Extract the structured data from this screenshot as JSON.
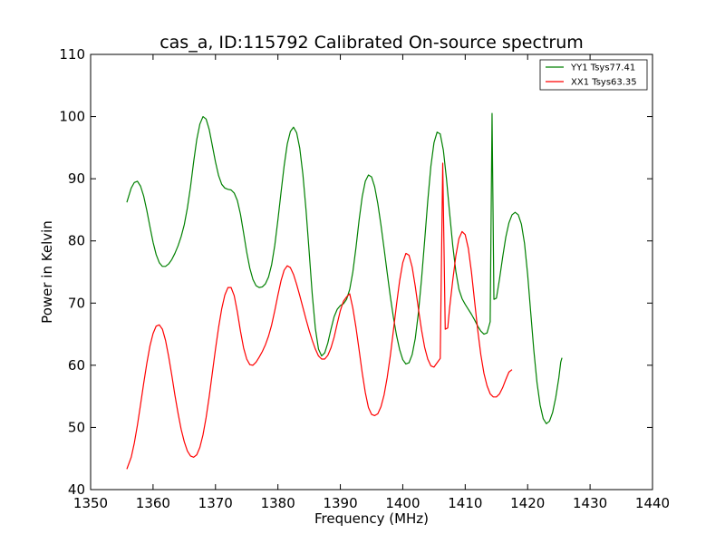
{
  "chart_data": {
    "type": "line",
    "title": "cas_a, ID:115792 Calibrated On-source spectrum",
    "xlabel": "Frequency (MHz)",
    "ylabel": "Power in Kelvin",
    "xlim": [
      1350,
      1440
    ],
    "ylim": [
      40,
      110
    ],
    "x_ticks": [
      1350,
      1360,
      1370,
      1380,
      1390,
      1400,
      1410,
      1420,
      1430,
      1440
    ],
    "y_ticks": [
      40,
      50,
      60,
      70,
      80,
      90,
      100,
      110
    ],
    "grid": false,
    "legend_position": "upper right",
    "series": [
      {
        "name": "YY1 Tsys77.41",
        "color": "#008000",
        "points": [
          [
            1355.8,
            86.2
          ],
          [
            1356.5,
            88.5
          ],
          [
            1357.0,
            89.4
          ],
          [
            1357.5,
            89.6
          ],
          [
            1358.0,
            88.8
          ],
          [
            1358.5,
            87.2
          ],
          [
            1359.0,
            84.9
          ],
          [
            1359.5,
            82.3
          ],
          [
            1360.0,
            79.8
          ],
          [
            1360.5,
            77.8
          ],
          [
            1361.0,
            76.5
          ],
          [
            1361.5,
            75.9
          ],
          [
            1362.0,
            75.9
          ],
          [
            1362.5,
            76.3
          ],
          [
            1363.0,
            77.0
          ],
          [
            1363.5,
            78.0
          ],
          [
            1364.0,
            79.2
          ],
          [
            1364.5,
            80.7
          ],
          [
            1365.0,
            82.6
          ],
          [
            1365.5,
            85.3
          ],
          [
            1366.0,
            88.7
          ],
          [
            1366.5,
            92.7
          ],
          [
            1367.0,
            96.3
          ],
          [
            1367.5,
            98.8
          ],
          [
            1368.0,
            100.0
          ],
          [
            1368.5,
            99.6
          ],
          [
            1369.0,
            97.9
          ],
          [
            1369.5,
            95.3
          ],
          [
            1370.0,
            92.7
          ],
          [
            1370.5,
            90.5
          ],
          [
            1371.0,
            89.1
          ],
          [
            1371.5,
            88.5
          ],
          [
            1372.0,
            88.3
          ],
          [
            1372.5,
            88.2
          ],
          [
            1373.0,
            87.7
          ],
          [
            1373.5,
            86.5
          ],
          [
            1374.0,
            84.3
          ],
          [
            1374.5,
            81.3
          ],
          [
            1375.0,
            78.2
          ],
          [
            1375.5,
            75.6
          ],
          [
            1376.0,
            73.8
          ],
          [
            1376.5,
            72.8
          ],
          [
            1377.0,
            72.5
          ],
          [
            1377.5,
            72.6
          ],
          [
            1378.0,
            73.1
          ],
          [
            1378.5,
            74.2
          ],
          [
            1379.0,
            76.2
          ],
          [
            1379.5,
            79.3
          ],
          [
            1380.0,
            83.4
          ],
          [
            1380.5,
            87.8
          ],
          [
            1381.0,
            92.1
          ],
          [
            1381.5,
            95.6
          ],
          [
            1382.0,
            97.6
          ],
          [
            1382.5,
            98.3
          ],
          [
            1383.0,
            97.4
          ],
          [
            1383.5,
            94.9
          ],
          [
            1384.0,
            90.7
          ],
          [
            1384.5,
            85.0
          ],
          [
            1385.0,
            78.3
          ],
          [
            1385.5,
            71.4
          ],
          [
            1386.0,
            65.9
          ],
          [
            1386.5,
            62.6
          ],
          [
            1387.0,
            61.5
          ],
          [
            1387.5,
            62.0
          ],
          [
            1388.0,
            63.6
          ],
          [
            1388.5,
            65.8
          ],
          [
            1389.0,
            67.8
          ],
          [
            1389.5,
            69.0
          ],
          [
            1390.0,
            69.6
          ],
          [
            1390.5,
            69.9
          ],
          [
            1391.0,
            70.6
          ],
          [
            1391.5,
            72.2
          ],
          [
            1392.0,
            75.0
          ],
          [
            1392.5,
            78.9
          ],
          [
            1393.0,
            83.3
          ],
          [
            1393.5,
            87.1
          ],
          [
            1394.0,
            89.6
          ],
          [
            1394.5,
            90.6
          ],
          [
            1395.0,
            90.3
          ],
          [
            1395.5,
            88.7
          ],
          [
            1396.0,
            86.0
          ],
          [
            1396.5,
            82.6
          ],
          [
            1397.0,
            78.8
          ],
          [
            1397.5,
            74.9
          ],
          [
            1398.0,
            71.1
          ],
          [
            1398.5,
            67.7
          ],
          [
            1399.0,
            64.8
          ],
          [
            1399.5,
            62.5
          ],
          [
            1400.0,
            60.9
          ],
          [
            1400.5,
            60.2
          ],
          [
            1401.0,
            60.4
          ],
          [
            1401.5,
            61.7
          ],
          [
            1402.0,
            64.3
          ],
          [
            1402.5,
            68.4
          ],
          [
            1403.0,
            73.8
          ],
          [
            1403.5,
            80.0
          ],
          [
            1404.0,
            86.4
          ],
          [
            1404.5,
            92.0
          ],
          [
            1405.0,
            95.8
          ],
          [
            1405.5,
            97.5
          ],
          [
            1406.0,
            97.2
          ],
          [
            1406.5,
            94.6
          ],
          [
            1407.0,
            90.0
          ],
          [
            1407.5,
            84.5
          ],
          [
            1408.0,
            79.3
          ],
          [
            1408.5,
            75.1
          ],
          [
            1409.0,
            72.2
          ],
          [
            1409.5,
            70.7
          ],
          [
            1410.0,
            69.8
          ],
          [
            1410.5,
            69.0
          ],
          [
            1411.0,
            68.2
          ],
          [
            1411.5,
            67.3
          ],
          [
            1412.0,
            66.3
          ],
          [
            1412.5,
            65.5
          ],
          [
            1413.0,
            65.0
          ],
          [
            1413.5,
            65.2
          ],
          [
            1414.0,
            67.0
          ],
          [
            1414.3,
            100.5
          ],
          [
            1414.6,
            70.6
          ],
          [
            1415.0,
            70.8
          ],
          [
            1415.5,
            73.9
          ],
          [
            1416.0,
            77.4
          ],
          [
            1416.5,
            80.6
          ],
          [
            1417.0,
            82.9
          ],
          [
            1417.5,
            84.2
          ],
          [
            1418.0,
            84.6
          ],
          [
            1418.5,
            84.2
          ],
          [
            1419.0,
            82.7
          ],
          [
            1419.5,
            79.6
          ],
          [
            1420.0,
            74.6
          ],
          [
            1420.5,
            68.4
          ],
          [
            1421.0,
            62.3
          ],
          [
            1421.5,
            57.2
          ],
          [
            1422.0,
            53.6
          ],
          [
            1422.5,
            51.4
          ],
          [
            1423.0,
            50.6
          ],
          [
            1423.5,
            51.0
          ],
          [
            1424.0,
            52.4
          ],
          [
            1424.5,
            54.8
          ],
          [
            1425.0,
            58.0
          ],
          [
            1425.3,
            60.5
          ],
          [
            1425.5,
            61.2
          ]
        ]
      },
      {
        "name": "XX1 Tsys63.35",
        "color": "#ff0000",
        "points": [
          [
            1355.8,
            43.3
          ],
          [
            1356.5,
            45.2
          ],
          [
            1357.0,
            47.5
          ],
          [
            1357.5,
            50.4
          ],
          [
            1358.0,
            53.7
          ],
          [
            1358.5,
            57.1
          ],
          [
            1359.0,
            60.3
          ],
          [
            1359.5,
            63.1
          ],
          [
            1360.0,
            65.1
          ],
          [
            1360.5,
            66.3
          ],
          [
            1361.0,
            66.5
          ],
          [
            1361.5,
            65.8
          ],
          [
            1362.0,
            64.0
          ],
          [
            1362.5,
            61.4
          ],
          [
            1363.0,
            58.4
          ],
          [
            1363.5,
            55.2
          ],
          [
            1364.0,
            52.3
          ],
          [
            1364.5,
            49.7
          ],
          [
            1365.0,
            47.7
          ],
          [
            1365.5,
            46.2
          ],
          [
            1366.0,
            45.4
          ],
          [
            1366.5,
            45.2
          ],
          [
            1367.0,
            45.6
          ],
          [
            1367.5,
            46.8
          ],
          [
            1368.0,
            48.8
          ],
          [
            1368.5,
            51.6
          ],
          [
            1369.0,
            55.0
          ],
          [
            1369.5,
            58.8
          ],
          [
            1370.0,
            62.6
          ],
          [
            1370.5,
            66.1
          ],
          [
            1371.0,
            69.1
          ],
          [
            1371.5,
            71.3
          ],
          [
            1372.0,
            72.5
          ],
          [
            1372.5,
            72.5
          ],
          [
            1373.0,
            71.2
          ],
          [
            1373.5,
            68.6
          ],
          [
            1374.0,
            65.5
          ],
          [
            1374.5,
            62.8
          ],
          [
            1375.0,
            61.0
          ],
          [
            1375.5,
            60.1
          ],
          [
            1376.0,
            60.0
          ],
          [
            1376.5,
            60.5
          ],
          [
            1377.0,
            61.3
          ],
          [
            1377.5,
            62.2
          ],
          [
            1378.0,
            63.3
          ],
          [
            1378.5,
            64.7
          ],
          [
            1379.0,
            66.5
          ],
          [
            1379.5,
            68.8
          ],
          [
            1380.0,
            71.3
          ],
          [
            1380.5,
            73.6
          ],
          [
            1381.0,
            75.3
          ],
          [
            1381.5,
            76.0
          ],
          [
            1382.0,
            75.7
          ],
          [
            1382.5,
            74.6
          ],
          [
            1383.0,
            73.0
          ],
          [
            1383.5,
            71.2
          ],
          [
            1384.0,
            69.3
          ],
          [
            1384.5,
            67.4
          ],
          [
            1385.0,
            65.6
          ],
          [
            1385.5,
            64.0
          ],
          [
            1386.0,
            62.6
          ],
          [
            1386.5,
            61.5
          ],
          [
            1387.0,
            61.0
          ],
          [
            1387.5,
            61.0
          ],
          [
            1388.0,
            61.6
          ],
          [
            1388.5,
            62.8
          ],
          [
            1389.0,
            64.5
          ],
          [
            1389.5,
            66.7
          ],
          [
            1390.0,
            68.8
          ],
          [
            1390.5,
            70.3
          ],
          [
            1391.0,
            71.0
          ],
          [
            1391.5,
            71.5
          ],
          [
            1392.0,
            69.2
          ],
          [
            1392.5,
            66.1
          ],
          [
            1393.0,
            62.5
          ],
          [
            1393.5,
            58.8
          ],
          [
            1394.0,
            55.6
          ],
          [
            1394.5,
            53.2
          ],
          [
            1395.0,
            52.1
          ],
          [
            1395.5,
            51.9
          ],
          [
            1396.0,
            52.2
          ],
          [
            1396.5,
            53.3
          ],
          [
            1397.0,
            55.2
          ],
          [
            1397.5,
            58.0
          ],
          [
            1398.0,
            61.5
          ],
          [
            1398.5,
            65.6
          ],
          [
            1399.0,
            69.8
          ],
          [
            1399.5,
            73.6
          ],
          [
            1400.0,
            76.5
          ],
          [
            1400.5,
            78.0
          ],
          [
            1401.0,
            77.7
          ],
          [
            1401.5,
            75.8
          ],
          [
            1402.0,
            72.7
          ],
          [
            1402.5,
            69.1
          ],
          [
            1403.0,
            65.7
          ],
          [
            1403.5,
            62.9
          ],
          [
            1404.0,
            61.0
          ],
          [
            1404.5,
            59.9
          ],
          [
            1405.0,
            59.7
          ],
          [
            1405.5,
            60.4
          ],
          [
            1406.0,
            61.1
          ],
          [
            1406.4,
            92.5
          ],
          [
            1406.8,
            65.8
          ],
          [
            1407.2,
            66.0
          ],
          [
            1407.5,
            69.2
          ],
          [
            1408.0,
            73.6
          ],
          [
            1408.5,
            77.6
          ],
          [
            1409.0,
            80.4
          ],
          [
            1409.5,
            81.5
          ],
          [
            1410.0,
            81.0
          ],
          [
            1410.5,
            78.8
          ],
          [
            1411.0,
            75.0
          ],
          [
            1411.5,
            70.3
          ],
          [
            1412.0,
            65.7
          ],
          [
            1412.5,
            61.7
          ],
          [
            1413.0,
            58.7
          ],
          [
            1413.5,
            56.7
          ],
          [
            1414.0,
            55.4
          ],
          [
            1414.5,
            54.9
          ],
          [
            1415.0,
            54.9
          ],
          [
            1415.5,
            55.4
          ],
          [
            1416.0,
            56.4
          ],
          [
            1416.5,
            57.7
          ],
          [
            1417.0,
            58.9
          ],
          [
            1417.5,
            59.3
          ]
        ]
      }
    ]
  }
}
